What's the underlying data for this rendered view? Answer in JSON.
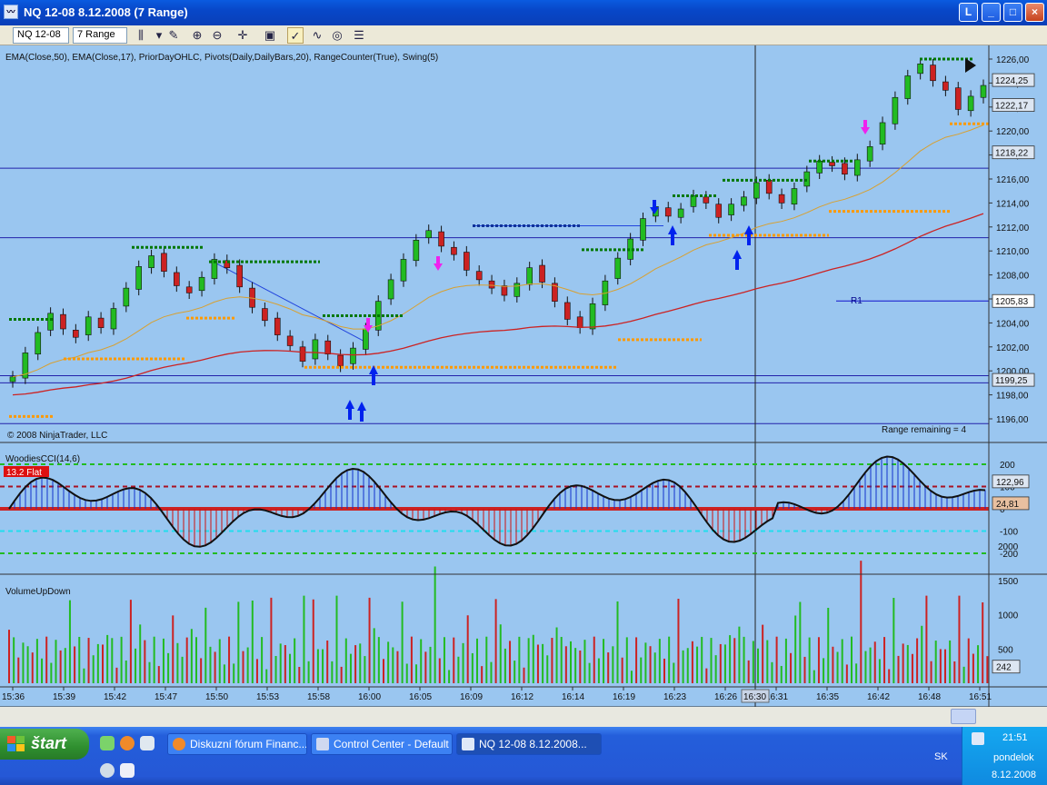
{
  "window": {
    "title": "NQ 12-08  8.12.2008 (7 Range)",
    "buttons": [
      "L",
      "_",
      "□",
      "×"
    ]
  },
  "toolbar": {
    "instrument": "NQ 12-08",
    "period": "7 Range"
  },
  "colors": {
    "chart_bg": "#9ac6f0",
    "up": "#22bb22",
    "down": "#cc2222",
    "ema50": "#cc2222",
    "ema17": "#d8a030",
    "swing_high": "#007700",
    "swing_low": "#ff9900"
  },
  "price_panel": {
    "indicators_label": "EMA(Close,50), EMA(Close,17), PriorDayOHLC, Pivots(Daily,DailyBars,20), RangeCounter(True), Swing(5)",
    "copyright": "© 2008 NinjaTrader, LLC",
    "range_remaining": "Range remaining = 4",
    "pivot_label": "R1",
    "axis_ticks": [
      "1226,00",
      "1224,00",
      "1222,00",
      "1220,00",
      "1218,00",
      "1216,00",
      "1214,00",
      "1212,00",
      "1210,00",
      "1208,00",
      "1206,00",
      "1204,00",
      "1202,00",
      "1200,00",
      "1198,00",
      "1196,00"
    ],
    "price_tags": [
      "1224,25",
      "1222,17",
      "1218,22",
      "1205,83",
      "1199,25"
    ]
  },
  "cci_panel": {
    "label": "WoodiesCCI(14,6)",
    "badge": "13.2 Flat",
    "axis_ticks": [
      "200",
      "100",
      "0",
      "-100",
      "-200"
    ],
    "value_tags": [
      "122,96",
      "24,81"
    ]
  },
  "volume_panel": {
    "label": "VolumeUpDown",
    "axis_ticks": [
      "2000",
      "1500",
      "1000",
      "500"
    ],
    "value_tag": "242"
  },
  "time_axis": {
    "labels": [
      "15:36",
      "15:39",
      "15:42",
      "15:47",
      "15:50",
      "15:53",
      "15:58",
      "16:00",
      "16:05",
      "16:09",
      "16:12",
      "16:14",
      "16:19",
      "16:23",
      "16:26",
      "16:31",
      "16:35",
      "16:42",
      "16:48",
      "16:51"
    ],
    "cursor_label": "16:30"
  },
  "taskbar": {
    "start": "štart",
    "tasks": [
      "Diskuzní fórum Financ...",
      "Control Center - Default",
      "NQ 12-08  8.12.2008..."
    ],
    "language": "SK",
    "clock_time": "21:51",
    "clock_day": "pondelok",
    "clock_date": "8.12.2008"
  }
}
